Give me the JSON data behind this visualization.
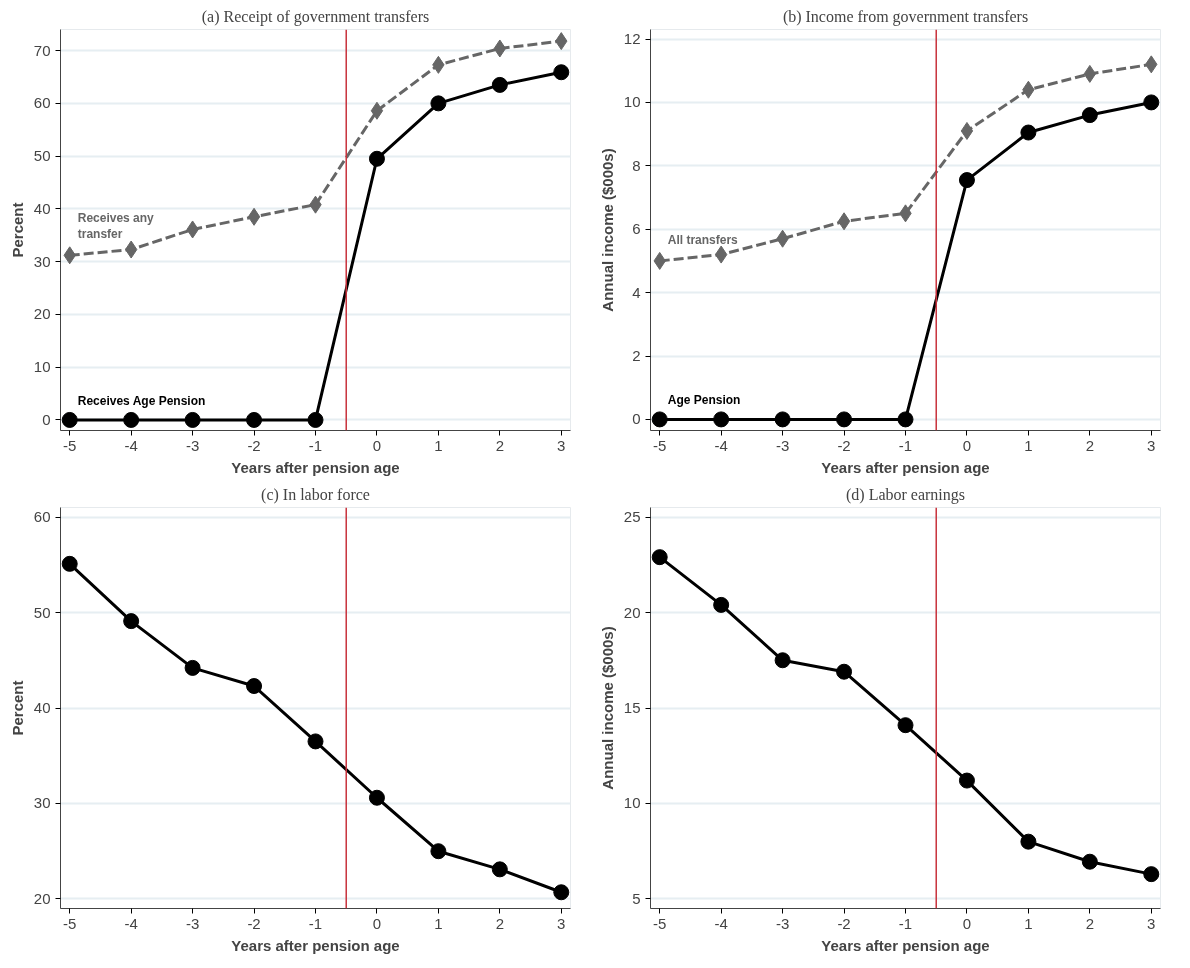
{
  "chart_data": [
    {
      "type": "line",
      "title": "(a) Receipt of government transfers",
      "xlabel": "Years after pension age",
      "ylabel": "Percent",
      "x": [
        -5,
        -4,
        -3,
        -2,
        -1,
        0,
        1,
        2,
        3
      ],
      "xlim": [
        -5.15,
        3.15
      ],
      "xticks": [
        -5,
        -4,
        -3,
        -2,
        -1,
        0,
        1,
        2,
        3
      ],
      "ylim": [
        -2,
        74
      ],
      "yticks": [
        0,
        10,
        20,
        30,
        40,
        50,
        60,
        70
      ],
      "grid": "y",
      "legend": false,
      "series": [
        {
          "name": "Receives any\ntransfer",
          "color": "#666666",
          "marker": "diamond",
          "line_style": "dashed",
          "values": [
            31.2,
            32.3,
            36.1,
            38.5,
            40.8,
            58.6,
            67.3,
            70.4,
            71.8
          ]
        },
        {
          "name": "Receives Age Pension",
          "color": "#000000",
          "marker": "circle",
          "line_style": "solid",
          "values": [
            0,
            0,
            0,
            0,
            0,
            49.5,
            60.0,
            63.5,
            65.9
          ]
        }
      ],
      "ref_lines": [
        {
          "axis": "x",
          "value": -0.5,
          "color": "#c8323c"
        }
      ]
    },
    {
      "type": "line",
      "title": "(b) Income from government transfers",
      "xlabel": "Years after pension age",
      "ylabel": "Annual income ($000s)",
      "x": [
        -5,
        -4,
        -3,
        -2,
        -1,
        0,
        1,
        2,
        3
      ],
      "xlim": [
        -5.15,
        3.15
      ],
      "xticks": [
        -5,
        -4,
        -3,
        -2,
        -1,
        0,
        1,
        2,
        3
      ],
      "ylim": [
        -0.35,
        12.3
      ],
      "yticks": [
        0,
        2,
        4,
        6,
        8,
        10,
        12
      ],
      "grid": "y",
      "legend": false,
      "series": [
        {
          "name": "All transfers",
          "color": "#666666",
          "marker": "diamond",
          "line_style": "dashed",
          "values": [
            5.0,
            5.2,
            5.7,
            6.25,
            6.5,
            9.1,
            10.4,
            10.9,
            11.2
          ]
        },
        {
          "name": "Age Pension",
          "color": "#000000",
          "marker": "circle",
          "line_style": "solid",
          "values": [
            0,
            0,
            0,
            0,
            0,
            7.55,
            9.05,
            9.6,
            10.0
          ]
        }
      ],
      "ref_lines": [
        {
          "axis": "x",
          "value": -0.5,
          "color": "#c8323c"
        }
      ]
    },
    {
      "type": "line",
      "title": "(c) In labor force",
      "xlabel": "Years after pension age",
      "ylabel": "Percent",
      "x": [
        -5,
        -4,
        -3,
        -2,
        -1,
        0,
        1,
        2,
        3
      ],
      "xlim": [
        -5.15,
        3.15
      ],
      "xticks": [
        -5,
        -4,
        -3,
        -2,
        -1,
        0,
        1,
        2,
        3
      ],
      "ylim": [
        19,
        61
      ],
      "yticks": [
        20,
        30,
        40,
        50,
        60
      ],
      "grid": "y",
      "legend": false,
      "series": [
        {
          "color": "#000000",
          "marker": "circle",
          "line_style": "solid",
          "values": [
            55.1,
            49.1,
            44.2,
            42.3,
            36.5,
            30.6,
            25.0,
            23.1,
            20.7
          ]
        }
      ],
      "ref_lines": [
        {
          "axis": "x",
          "value": -0.5,
          "color": "#c8323c"
        }
      ]
    },
    {
      "type": "line",
      "title": "(d) Labor earnings",
      "xlabel": "Years after pension age",
      "ylabel": "Annual income ($000s)",
      "x": [
        -5,
        -4,
        -3,
        -2,
        -1,
        0,
        1,
        2,
        3
      ],
      "xlim": [
        -5.15,
        3.15
      ],
      "xticks": [
        -5,
        -4,
        -3,
        -2,
        -1,
        0,
        1,
        2,
        3
      ],
      "ylim": [
        4.5,
        25.5
      ],
      "yticks": [
        5,
        10,
        15,
        20,
        25
      ],
      "grid": "y",
      "legend": false,
      "series": [
        {
          "color": "#000000",
          "marker": "circle",
          "line_style": "solid",
          "values": [
            22.9,
            20.4,
            17.5,
            16.9,
            14.1,
            11.2,
            8.0,
            6.95,
            6.3
          ]
        }
      ],
      "ref_lines": [
        {
          "axis": "x",
          "value": -0.5,
          "color": "#c8323c"
        }
      ]
    }
  ]
}
